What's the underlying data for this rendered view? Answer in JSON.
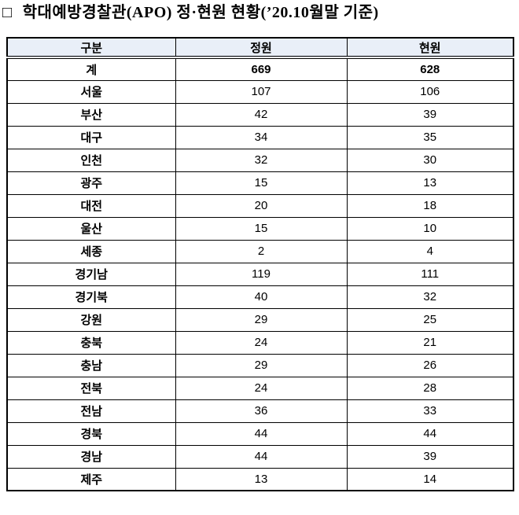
{
  "title": {
    "bullet": "□",
    "text": "학대예방경찰관(APO) 정·현원 현황(’20.10월말 기준)"
  },
  "colors": {
    "header_bg": "#e9eff8",
    "border_color": "#000000",
    "text_color": "#000000"
  },
  "table": {
    "headers": [
      "구분",
      "정원",
      "현원"
    ],
    "rows": [
      {
        "label": "계",
        "jeongwon": 669,
        "hyeonwon": 628
      },
      {
        "label": "서울",
        "jeongwon": 107,
        "hyeonwon": 106
      },
      {
        "label": "부산",
        "jeongwon": 42,
        "hyeonwon": 39
      },
      {
        "label": "대구",
        "jeongwon": 34,
        "hyeonwon": 35
      },
      {
        "label": "인천",
        "jeongwon": 32,
        "hyeonwon": 30
      },
      {
        "label": "광주",
        "jeongwon": 15,
        "hyeonwon": 13
      },
      {
        "label": "대전",
        "jeongwon": 20,
        "hyeonwon": 18
      },
      {
        "label": "울산",
        "jeongwon": 15,
        "hyeonwon": 10
      },
      {
        "label": "세종",
        "jeongwon": 2,
        "hyeonwon": 4
      },
      {
        "label": "경기남",
        "jeongwon": 119,
        "hyeonwon": 111
      },
      {
        "label": "경기북",
        "jeongwon": 40,
        "hyeonwon": 32
      },
      {
        "label": "강원",
        "jeongwon": 29,
        "hyeonwon": 25
      },
      {
        "label": "충북",
        "jeongwon": 24,
        "hyeonwon": 21
      },
      {
        "label": "충남",
        "jeongwon": 29,
        "hyeonwon": 26
      },
      {
        "label": "전북",
        "jeongwon": 24,
        "hyeonwon": 28
      },
      {
        "label": "전남",
        "jeongwon": 36,
        "hyeonwon": 33
      },
      {
        "label": "경북",
        "jeongwon": 44,
        "hyeonwon": 44
      },
      {
        "label": "경남",
        "jeongwon": 44,
        "hyeonwon": 39
      },
      {
        "label": "제주",
        "jeongwon": 13,
        "hyeonwon": 14
      }
    ]
  }
}
